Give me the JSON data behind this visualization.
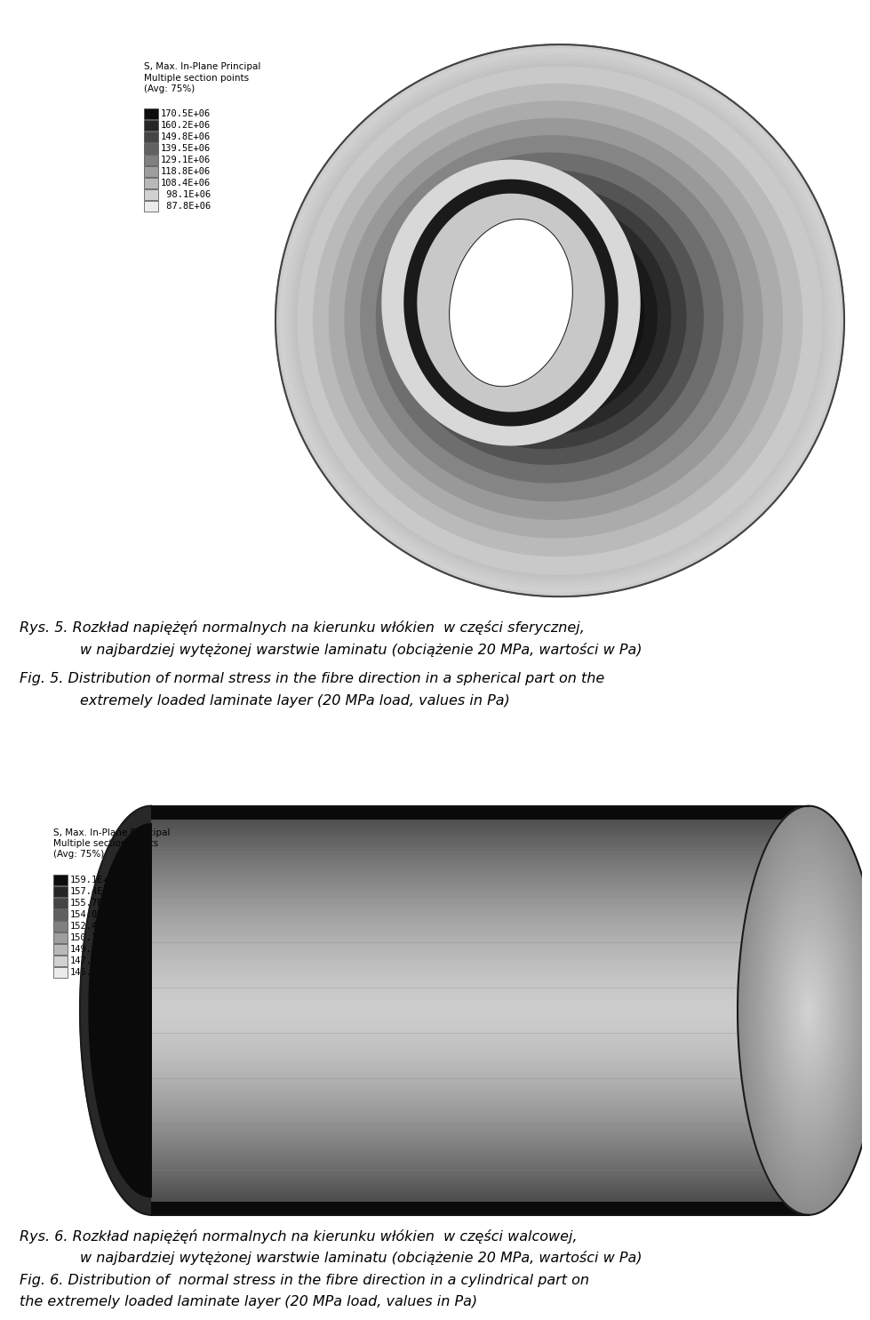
{
  "fig1_legend_title": "S, Max. In-Plane Principal\nMultiple section points\n(Avg: 75%)",
  "fig1_legend_values": [
    "170.5E+06",
    "160.2E+06",
    "149.8E+06",
    "139.5E+06",
    "129.1E+06",
    "118.8E+06",
    "108.4E+06",
    " 98.1E+06",
    " 87.8E+06"
  ],
  "fig1_legend_grays": [
    0.05,
    0.15,
    0.27,
    0.38,
    0.5,
    0.62,
    0.72,
    0.82,
    0.92
  ],
  "fig2_legend_title": "S, Max. In-Plane Principal\nMultiple section points\n(Avg: 75%)",
  "fig2_legend_values": [
    "159.1E+06",
    "157.4E+06",
    "155.7E+06",
    "154.0E+06",
    "152.4E+06",
    "150.7E+06",
    "149.0E+06",
    "147.3E+06",
    "145.7E+06"
  ],
  "fig2_legend_grays": [
    0.05,
    0.15,
    0.27,
    0.38,
    0.5,
    0.62,
    0.72,
    0.82,
    0.92
  ],
  "caption1_pl_line1": "Rys. 5. Rozkład napiężęń normalnych na kierunku włókien  w części sferycznej,",
  "caption1_pl_line2": "w najbardziej wytężonej warstwie laminatu (obciążenie 20 MPa, wartości w Pa)",
  "caption1_en_line1": "Fig. 5. Distribution of normal stress in the fibre direction in a spherical part on the",
  "caption1_en_line2": "extremely loaded laminate layer (20 MPa load, values in Pa)",
  "caption2_pl_line1": "Rys. 6. Rozkład napiężęń normalnych na kierunku włókien  w części walcowej,",
  "caption2_pl_line2": "w najbardziej wytężonej warstwie laminatu (obciążenie 20 MPa, wartości w Pa)",
  "caption2_en_line1": "Fig. 6. Distribution of  normal stress in the fibre direction in a cylindrical part on",
  "caption2_en_line2": "the extremely loaded laminate layer (20 MPa load, values in Pa)",
  "bg_color": "#ffffff"
}
